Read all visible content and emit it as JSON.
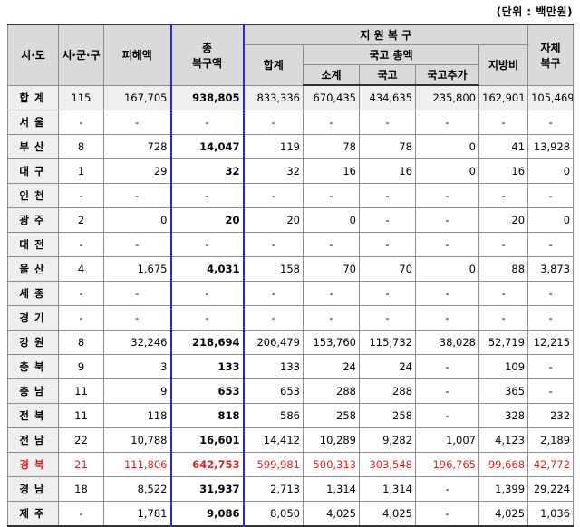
{
  "unit_note": "(단위 : 백만원)",
  "headers": {
    "region": "시·도",
    "districts": "시·군·구",
    "damage": "피해액",
    "total_recovery_top": "총",
    "total_recovery_bottom": "복구액",
    "support_recovery": "지 원 복 구",
    "support_sum": "합계",
    "national_total": "국고 총액",
    "subtotal": "소계",
    "national": "국고",
    "national_extra": "국고추가",
    "local": "지방비",
    "self_top": "자체",
    "self_bottom": "복구"
  },
  "rows": [
    {
      "region": "합계",
      "count": "115",
      "damage": "167,705",
      "total": "938,805",
      "sum": "833,336",
      "subtotal": "670,435",
      "national": "434,635",
      "extra": "235,800",
      "local": "162,901",
      "self": "105,469"
    },
    {
      "region": "서울",
      "count": "-",
      "damage": "-",
      "total": "-",
      "sum": "-",
      "subtotal": "-",
      "national": "-",
      "extra": "-",
      "local": "-",
      "self": "-"
    },
    {
      "region": "부산",
      "count": "8",
      "damage": "728",
      "total": "14,047",
      "sum": "119",
      "subtotal": "78",
      "national": "78",
      "extra": "0",
      "local": "41",
      "self": "13,928"
    },
    {
      "region": "대구",
      "count": "1",
      "damage": "29",
      "total": "32",
      "sum": "32",
      "subtotal": "16",
      "national": "16",
      "extra": "0",
      "local": "16",
      "self": "0"
    },
    {
      "region": "인천",
      "count": "-",
      "damage": "-",
      "total": "-",
      "sum": "-",
      "subtotal": "-",
      "national": "-",
      "extra": "-",
      "local": "-",
      "self": "-"
    },
    {
      "region": "광주",
      "count": "2",
      "damage": "0",
      "total": "20",
      "sum": "20",
      "subtotal": "0",
      "national": "-",
      "extra": "-",
      "local": "20",
      "self": "0"
    },
    {
      "region": "대전",
      "count": "-",
      "damage": "-",
      "total": "-",
      "sum": "-",
      "subtotal": "-",
      "national": "-",
      "extra": "-",
      "local": "-",
      "self": "-"
    },
    {
      "region": "울산",
      "count": "4",
      "damage": "1,675",
      "total": "4,031",
      "sum": "158",
      "subtotal": "70",
      "national": "70",
      "extra": "0",
      "local": "88",
      "self": "3,873"
    },
    {
      "region": "세종",
      "count": "-",
      "damage": "-",
      "total": "-",
      "sum": "-",
      "subtotal": "-",
      "national": "-",
      "extra": "-",
      "local": "-",
      "self": "-"
    },
    {
      "region": "경기",
      "count": "-",
      "damage": "-",
      "total": "-",
      "sum": "-",
      "subtotal": "-",
      "national": "-",
      "extra": "-",
      "local": "-",
      "self": "-"
    },
    {
      "region": "강원",
      "count": "8",
      "damage": "32,246",
      "total": "218,694",
      "sum": "206,479",
      "subtotal": "153,760",
      "national": "115,732",
      "extra": "38,028",
      "local": "52,719",
      "self": "12,215"
    },
    {
      "region": "충북",
      "count": "9",
      "damage": "3",
      "total": "133",
      "sum": "133",
      "subtotal": "24",
      "national": "24",
      "extra": "-",
      "local": "109",
      "self": "-"
    },
    {
      "region": "충남",
      "count": "11",
      "damage": "9",
      "total": "653",
      "sum": "653",
      "subtotal": "288",
      "national": "288",
      "extra": "-",
      "local": "365",
      "self": "-"
    },
    {
      "region": "전북",
      "count": "11",
      "damage": "118",
      "total": "818",
      "sum": "586",
      "subtotal": "258",
      "national": "258",
      "extra": "-",
      "local": "328",
      "self": "232"
    },
    {
      "region": "전남",
      "count": "22",
      "damage": "10,788",
      "total": "16,601",
      "sum": "14,412",
      "subtotal": "10,289",
      "national": "9,282",
      "extra": "1,007",
      "local": "4,123",
      "self": "2,189"
    },
    {
      "region": "경북",
      "count": "21",
      "damage": "111,806",
      "total": "642,753",
      "sum": "599,981",
      "subtotal": "500,313",
      "national": "303,548",
      "extra": "196,765",
      "local": "99,668",
      "self": "42,772",
      "highlight": true
    },
    {
      "region": "경남",
      "count": "18",
      "damage": "8,522",
      "total": "31,937",
      "sum": "2,713",
      "subtotal": "1,314",
      "national": "1,314",
      "extra": "-",
      "local": "1,399",
      "self": "29,224"
    },
    {
      "region": "제주",
      "count": "-",
      "damage": "1,781",
      "total": "9,086",
      "sum": "8,050",
      "subtotal": "4,025",
      "national": "4,025",
      "extra": "-",
      "local": "4,025",
      "self": "1,036"
    }
  ],
  "colors": {
    "highlight": "#e02020",
    "header_bg": "#dadada",
    "accent_line": "#2b2bd0"
  }
}
